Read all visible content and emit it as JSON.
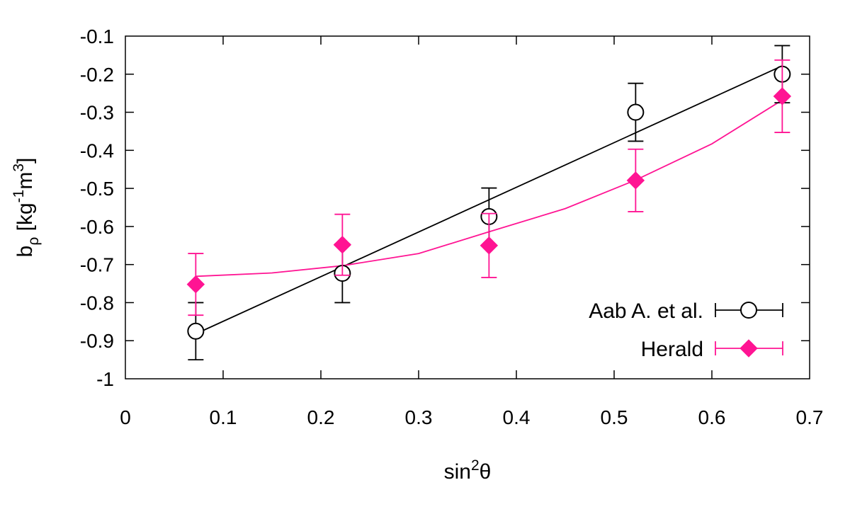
{
  "chart_data": {
    "type": "scatter",
    "xlim": [
      0,
      0.7
    ],
    "ylim": [
      -1,
      -0.1
    ],
    "x_ticks": [
      "0",
      "0.1",
      "0.2",
      "0.3",
      "0.4",
      "0.5",
      "0.6",
      "0.7"
    ],
    "y_ticks": [
      "-0.1",
      "-0.2",
      "-0.3",
      "-0.4",
      "-0.5",
      "-0.6",
      "-0.7",
      "-0.8",
      "-0.9",
      "-1"
    ],
    "ylabel": {
      "base": "b",
      "sub": "ρ",
      "mid": " [kg",
      "sup1": "-1",
      "mid2": "m",
      "sup2": "3",
      "end": "]"
    },
    "xlabel": {
      "base": "sin",
      "sup": "2",
      "end": "θ"
    },
    "grid": false,
    "legend_position": "bottom-right",
    "series": [
      {
        "name": "Aab A. et al.",
        "color": "#000000",
        "marker": "open-circle",
        "x": [
          0.072,
          0.222,
          0.372,
          0.522,
          0.672
        ],
        "y": [
          -0.875,
          -0.723,
          -0.574,
          -0.3,
          -0.2
        ],
        "err": [
          0.075,
          0.077,
          0.075,
          0.076,
          0.075
        ],
        "fit_type": "linear",
        "fit": [
          [
            0.072,
            -0.882
          ],
          [
            0.672,
            -0.178
          ]
        ]
      },
      {
        "name": "Herald",
        "color": "#ff1493",
        "marker": "filled-diamond",
        "x": [
          0.072,
          0.222,
          0.372,
          0.522,
          0.672
        ],
        "y": [
          -0.752,
          -0.648,
          -0.65,
          -0.479,
          -0.258
        ],
        "err": [
          0.081,
          0.08,
          0.084,
          0.082,
          0.095
        ],
        "fit_type": "quadratic",
        "fit": [
          [
            0.072,
            -0.731
          ],
          [
            0.15,
            -0.722
          ],
          [
            0.222,
            -0.703
          ],
          [
            0.3,
            -0.671
          ],
          [
            0.372,
            -0.614
          ],
          [
            0.45,
            -0.553
          ],
          [
            0.522,
            -0.478
          ],
          [
            0.6,
            -0.383
          ],
          [
            0.672,
            -0.268
          ]
        ]
      }
    ]
  }
}
